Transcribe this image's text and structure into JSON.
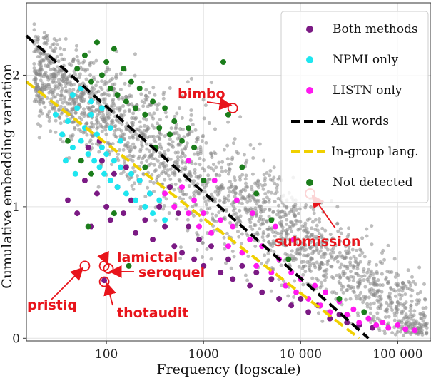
{
  "chart_data": {
    "type": "scatter",
    "title": "",
    "xlabel": "Frequency (logscale)",
    "ylabel": "Cumulative embedding variation",
    "xscale": "log",
    "xlim": [
      15,
      220000
    ],
    "ylim": [
      -0.02,
      2.55
    ],
    "x_tick_labels": [
      {
        "value": 100,
        "label": "100"
      },
      {
        "value": 1000,
        "label": "1000"
      },
      {
        "value": 10000,
        "label": "10 000"
      },
      {
        "value": 100000,
        "label": "100 000"
      }
    ],
    "y_tick_labels": [
      {
        "value": 0,
        "label": "0"
      },
      {
        "value": 1,
        "label": "1"
      },
      {
        "value": 2,
        "label": "2"
      }
    ],
    "grid": true,
    "legend_position": "top-right",
    "series": [
      {
        "name": "Both methods",
        "kind": "points",
        "color": "#7b1a84",
        "points": [
          [
            40,
            1.05
          ],
          [
            50,
            0.95
          ],
          [
            60,
            1.2
          ],
          [
            70,
            0.85
          ],
          [
            80,
            1.1
          ],
          [
            90,
            1.35
          ],
          [
            100,
            1.0
          ],
          [
            110,
            0.9
          ],
          [
            120,
            1.25
          ],
          [
            130,
            1.15
          ],
          [
            150,
            0.95
          ],
          [
            160,
            1.3
          ],
          [
            180,
            1.05
          ],
          [
            200,
            0.8
          ],
          [
            220,
            1.2
          ],
          [
            250,
            0.9
          ],
          [
            280,
            1.1
          ],
          [
            300,
            0.75
          ],
          [
            350,
            1.0
          ],
          [
            400,
            0.85
          ],
          [
            450,
            1.15
          ],
          [
            500,
            0.7
          ],
          [
            550,
            0.95
          ],
          [
            600,
            0.65
          ],
          [
            700,
            0.85
          ],
          [
            800,
            0.6
          ],
          [
            900,
            0.75
          ],
          [
            1000,
            0.55
          ],
          [
            1200,
            0.7
          ],
          [
            1500,
            0.5
          ],
          [
            1800,
            0.6
          ],
          [
            2000,
            0.45
          ],
          [
            2500,
            0.55
          ],
          [
            3000,
            0.4
          ],
          [
            3500,
            0.5
          ],
          [
            4000,
            0.35
          ],
          [
            5000,
            0.45
          ],
          [
            6000,
            0.3
          ],
          [
            7000,
            0.4
          ],
          [
            8000,
            0.25
          ],
          [
            10000,
            0.3
          ],
          [
            12000,
            0.2
          ],
          [
            15000,
            0.25
          ],
          [
            20000,
            0.15
          ],
          [
            25000,
            0.18
          ],
          [
            30000,
            0.12
          ],
          [
            40000,
            0.1
          ],
          [
            55000,
            0.08
          ],
          [
            65,
            1.45
          ],
          [
            85,
            1.5
          ],
          [
            95,
            0.44
          ]
        ]
      },
      {
        "name": "NPMI only",
        "kind": "points",
        "color": "#1ee6f0",
        "points": [
          [
            30,
            1.7
          ],
          [
            35,
            1.55
          ],
          [
            40,
            1.65
          ],
          [
            45,
            1.45
          ],
          [
            50,
            1.75
          ],
          [
            55,
            1.5
          ],
          [
            60,
            1.6
          ],
          [
            65,
            1.4
          ],
          [
            70,
            1.7
          ],
          [
            75,
            1.35
          ],
          [
            80,
            1.55
          ],
          [
            85,
            1.3
          ],
          [
            90,
            1.45
          ],
          [
            95,
            1.25
          ],
          [
            100,
            1.4
          ],
          [
            110,
            1.2
          ],
          [
            120,
            1.35
          ],
          [
            130,
            1.15
          ],
          [
            140,
            1.3
          ],
          [
            160,
            1.1
          ],
          [
            180,
            1.25
          ],
          [
            200,
            1.05
          ],
          [
            220,
            1.2
          ],
          [
            250,
            1.0
          ],
          [
            280,
            1.1
          ],
          [
            300,
            0.95
          ],
          [
            350,
            1.05
          ],
          [
            400,
            0.9
          ],
          [
            45,
            1.85
          ],
          [
            55,
            1.9
          ],
          [
            70,
            1.8
          ],
          [
            90,
            1.75
          ],
          [
            110,
            1.6
          ],
          [
            140,
            1.5
          ],
          [
            38,
            1.35
          ],
          [
            48,
            1.25
          ]
        ]
      },
      {
        "name": "LISTN only",
        "kind": "points",
        "color": "#ff19f0",
        "points": [
          [
            400,
            1.1
          ],
          [
            500,
            1.0
          ],
          [
            600,
            1.15
          ],
          [
            700,
            0.95
          ],
          [
            800,
            1.05
          ],
          [
            900,
            0.85
          ],
          [
            1000,
            0.95
          ],
          [
            1200,
            0.8
          ],
          [
            1500,
            0.9
          ],
          [
            1800,
            0.7
          ],
          [
            2000,
            0.85
          ],
          [
            2500,
            0.65
          ],
          [
            3000,
            0.75
          ],
          [
            3500,
            0.55
          ],
          [
            4000,
            0.7
          ],
          [
            5000,
            0.5
          ],
          [
            6000,
            0.6
          ],
          [
            7000,
            0.4
          ],
          [
            8000,
            0.5
          ],
          [
            9000,
            0.35
          ],
          [
            10000,
            0.45
          ],
          [
            12000,
            0.3
          ],
          [
            14000,
            0.4
          ],
          [
            16000,
            0.25
          ],
          [
            18000,
            0.35
          ],
          [
            20000,
            0.2
          ],
          [
            25000,
            0.28
          ],
          [
            30000,
            0.18
          ],
          [
            35000,
            0.22
          ],
          [
            40000,
            0.12
          ],
          [
            50000,
            0.15
          ],
          [
            60000,
            0.1
          ],
          [
            70000,
            0.12
          ],
          [
            80000,
            0.08
          ],
          [
            100000,
            0.1
          ],
          [
            120000,
            0.07
          ],
          [
            150000,
            0.06
          ],
          [
            2200,
            1.05
          ],
          [
            3200,
            0.95
          ],
          [
            5500,
            0.85
          ],
          [
            8500,
            0.75
          ],
          [
            1300,
            1.2
          ],
          [
            700,
            1.35
          ]
        ]
      },
      {
        "name": "All words",
        "kind": "line",
        "style": "dashed",
        "color": "#000000",
        "points": [
          [
            15,
            2.3
          ],
          [
            50000,
            0.0
          ]
        ]
      },
      {
        "name": "In-group lang.",
        "kind": "line",
        "style": "dashed",
        "color": "#f0d000",
        "points": [
          [
            15,
            1.95
          ],
          [
            40000,
            0.0
          ]
        ]
      },
      {
        "name": "Not detected",
        "kind": "points",
        "color": "#1b7d1b",
        "points": [
          [
            50,
            2.05
          ],
          [
            60,
            2.15
          ],
          [
            70,
            1.95
          ],
          [
            80,
            2.25
          ],
          [
            90,
            2.0
          ],
          [
            100,
            2.1
          ],
          [
            110,
            1.9
          ],
          [
            120,
            2.2
          ],
          [
            130,
            1.85
          ],
          [
            150,
            2.05
          ],
          [
            160,
            1.8
          ],
          [
            180,
            1.95
          ],
          [
            200,
            1.75
          ],
          [
            220,
            1.9
          ],
          [
            250,
            1.7
          ],
          [
            300,
            1.8
          ],
          [
            350,
            1.6
          ],
          [
            400,
            1.75
          ],
          [
            450,
            1.55
          ],
          [
            500,
            1.65
          ],
          [
            600,
            1.5
          ],
          [
            700,
            1.6
          ],
          [
            800,
            1.45
          ],
          [
            1600,
            2.1
          ],
          [
            1800,
            1.7
          ],
          [
            40,
            1.5
          ],
          [
            55,
            1.35
          ],
          [
            70,
            1.25
          ],
          [
            65,
            0.85
          ],
          [
            120,
            0.95
          ],
          [
            170,
            0.55
          ],
          [
            250,
            1.3
          ],
          [
            320,
            1.45
          ],
          [
            1000,
            1.2
          ],
          [
            2500,
            1.3
          ],
          [
            3500,
            1.1
          ],
          [
            5000,
            0.9
          ],
          [
            7500,
            0.6
          ],
          [
            25000,
            0.3
          ],
          [
            45000,
            0.2
          ]
        ]
      }
    ],
    "background_cloud": {
      "color": "#888888",
      "label": ""
    },
    "annotations": [
      {
        "text": "bimbo",
        "x": 2000,
        "y": 1.75
      },
      {
        "text": "submission",
        "x": 12500,
        "y": 1.1
      },
      {
        "text": "lamictal",
        "x": 95,
        "y": 0.55
      },
      {
        "text": "seroquel",
        "x": 105,
        "y": 0.53
      },
      {
        "text": "pristiq",
        "x": 60,
        "y": 0.55
      },
      {
        "text": "thotaudit",
        "x": 95,
        "y": 0.43
      }
    ]
  }
}
